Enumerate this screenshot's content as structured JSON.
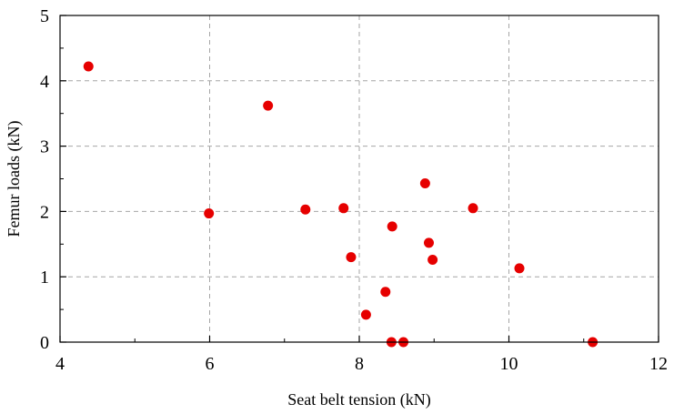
{
  "chart_data": {
    "type": "scatter",
    "xlabel": "Seat belt tension (kN)",
    "ylabel": "Femur loads (kN)",
    "xlim": [
      4,
      12
    ],
    "ylim": [
      0,
      5
    ],
    "xticks": [
      4,
      6,
      8,
      10,
      12
    ],
    "yticks": [
      0,
      1,
      2,
      3,
      4,
      5
    ],
    "x_tick_labels": [
      "4",
      "6",
      "8",
      "10",
      "12"
    ],
    "y_tick_labels": [
      "0",
      "1",
      "2",
      "3",
      "4",
      "5"
    ],
    "grid": true,
    "grid_style": "dashed",
    "marker_color": "#e60000",
    "series": [
      {
        "points": [
          {
            "x": 4.38,
            "y": 4.22
          },
          {
            "x": 5.99,
            "y": 1.97
          },
          {
            "x": 6.78,
            "y": 3.62
          },
          {
            "x": 7.28,
            "y": 2.03
          },
          {
            "x": 7.79,
            "y": 2.05
          },
          {
            "x": 7.89,
            "y": 1.3
          },
          {
            "x": 8.09,
            "y": 0.42
          },
          {
            "x": 8.35,
            "y": 0.77
          },
          {
            "x": 8.43,
            "y": 0.0
          },
          {
            "x": 8.44,
            "y": 1.77
          },
          {
            "x": 8.59,
            "y": 0.0
          },
          {
            "x": 8.88,
            "y": 2.43
          },
          {
            "x": 8.93,
            "y": 1.52
          },
          {
            "x": 8.98,
            "y": 1.26
          },
          {
            "x": 9.52,
            "y": 2.05
          },
          {
            "x": 10.14,
            "y": 1.13
          },
          {
            "x": 11.12,
            "y": 0.0
          }
        ]
      }
    ]
  }
}
